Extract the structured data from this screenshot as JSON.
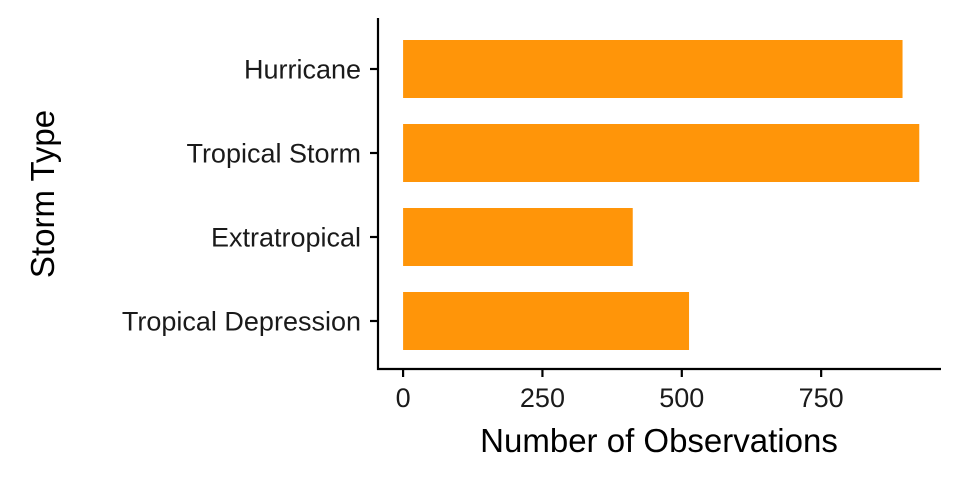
{
  "chart_data": {
    "type": "bar",
    "orientation": "horizontal",
    "categories": [
      "Hurricane",
      "Tropical Storm",
      "Extratropical",
      "Tropical Depression"
    ],
    "values": [
      896,
      926,
      412,
      513
    ],
    "xlabel": "Number of Observations",
    "ylabel": "Storm Type",
    "xlim": [
      -45,
      965
    ],
    "xticks": [
      0,
      250,
      500,
      750
    ],
    "xtick_labels": [
      "0",
      "250",
      "500",
      "750"
    ],
    "grid": false,
    "bar_color": "#FF9509"
  }
}
